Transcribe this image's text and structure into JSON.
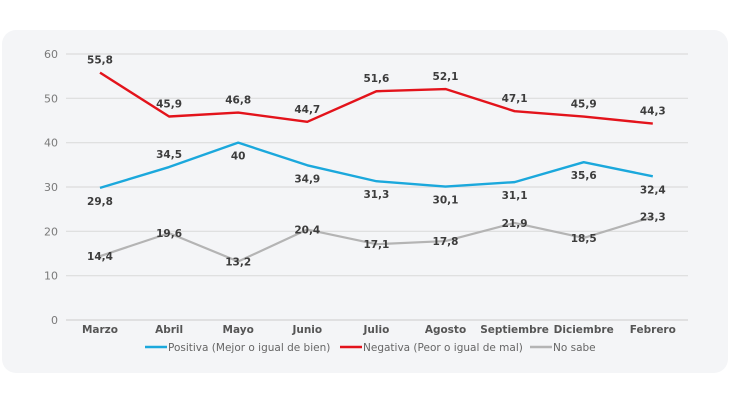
{
  "chart_data": {
    "type": "line",
    "title": "",
    "xlabel": "",
    "ylabel": "",
    "ylim": [
      0,
      60
    ],
    "yticks": [
      0,
      10,
      20,
      30,
      40,
      50,
      60
    ],
    "grid": true,
    "legend_position": "bottom",
    "categories": [
      "Marzo",
      "Abril",
      "Mayo",
      "Junio",
      "Julio",
      "Agosto",
      "Septiembre",
      "Diciembre",
      "Febrero"
    ],
    "series": [
      {
        "name": "Positiva (Mejor o igual de bien)",
        "color": "#1ba8dc",
        "values": [
          29.8,
          34.5,
          40,
          34.9,
          31.3,
          30.1,
          31.1,
          35.6,
          32.4
        ],
        "labels": [
          "29,8",
          "34,5",
          "40",
          "34,9",
          "31,3",
          "30,1",
          "31,1",
          "35,6",
          "32,4"
        ],
        "label_position": [
          "below",
          "above",
          "below",
          "below",
          "below",
          "below",
          "below",
          "below",
          "below"
        ]
      },
      {
        "name": "Negativa (Peor o igual de mal)",
        "color": "#e3131b",
        "values": [
          55.8,
          45.9,
          46.8,
          44.7,
          51.6,
          52.1,
          47.1,
          45.9,
          44.3
        ],
        "labels": [
          "55,8",
          "45,9",
          "46,8",
          "44,7",
          "51,6",
          "52,1",
          "47,1",
          "45,9",
          "44,3"
        ],
        "label_position": [
          "above",
          "above",
          "above",
          "above",
          "above",
          "above",
          "above",
          "above",
          "above"
        ]
      },
      {
        "name": "No sabe",
        "color": "#b4b4b4",
        "values": [
          14.4,
          19.6,
          13.2,
          20.4,
          17.1,
          17.8,
          21.9,
          18.5,
          23.3
        ],
        "labels": [
          "14,4",
          "19,6",
          "13,2",
          "20,4",
          "17,1",
          "17,8",
          "21,9",
          "18,5",
          "23,3"
        ],
        "label_position": [
          "center",
          "center",
          "center",
          "center",
          "center",
          "center",
          "center",
          "center",
          "center"
        ]
      }
    ]
  }
}
